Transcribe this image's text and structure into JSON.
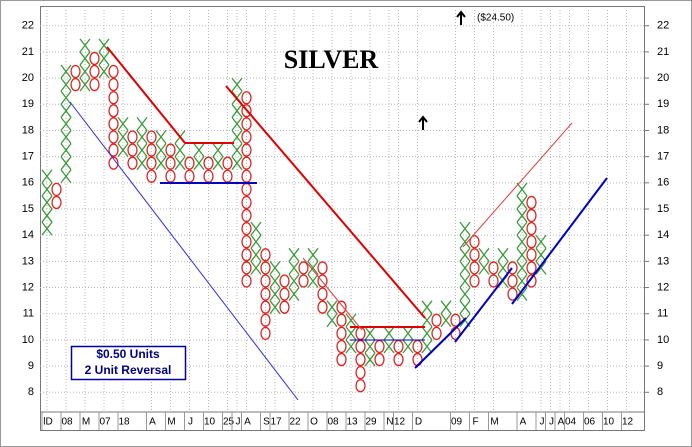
{
  "chart_data": {
    "type": "point-figure",
    "title": "SILVER",
    "annotations": [
      "($24.50)"
    ],
    "notes": [
      "$0.50 Units",
      "2 Unit Reversal"
    ],
    "box_size": 0.5,
    "x_colors": {
      "X": "#3c9a3c",
      "O": "#e02020"
    },
    "ylim": [
      7.4,
      22.6
    ],
    "yticks": [
      8,
      9,
      10,
      11,
      12,
      13,
      14,
      15,
      16,
      17,
      18,
      19,
      20,
      21,
      22
    ],
    "grid": true,
    "x_labels": [
      {
        "col": 0,
        "label": "lD"
      },
      {
        "col": 2,
        "label": "08"
      },
      {
        "col": 4,
        "label": "M"
      },
      {
        "col": 6,
        "label": "07"
      },
      {
        "col": 8,
        "label": "18"
      },
      {
        "col": 11,
        "label": "A"
      },
      {
        "col": 13,
        "label": "M"
      },
      {
        "col": 15,
        "label": "J"
      },
      {
        "col": 17,
        "label": "10"
      },
      {
        "col": 19,
        "label": "25"
      },
      {
        "col": 20,
        "label": "J"
      },
      {
        "col": 21,
        "label": "A"
      },
      {
        "col": 23,
        "label": "S"
      },
      {
        "col": 24,
        "label": "17"
      },
      {
        "col": 26,
        "label": "22"
      },
      {
        "col": 28,
        "label": "O"
      },
      {
        "col": 30,
        "label": "08"
      },
      {
        "col": 32,
        "label": "13"
      },
      {
        "col": 34,
        "label": "29"
      },
      {
        "col": 36,
        "label": "N"
      },
      {
        "col": 37,
        "label": "12"
      },
      {
        "col": 39,
        "label": "D"
      },
      {
        "col": 43,
        "label": "09"
      },
      {
        "col": 45,
        "label": "F"
      },
      {
        "col": 47,
        "label": "M"
      },
      {
        "col": 50,
        "label": "A"
      },
      {
        "col": 52,
        "label": "J"
      },
      {
        "col": 53,
        "label": "J"
      },
      {
        "col": 54,
        "label": "A"
      },
      {
        "col": 55,
        "label": "04"
      },
      {
        "col": 57,
        "label": "06"
      },
      {
        "col": 59,
        "label": "10"
      },
      {
        "col": 61,
        "label": "12"
      }
    ],
    "columns": [
      {
        "kind": "X",
        "low": 14,
        "high": 16
      },
      {
        "kind": "O",
        "low": 15,
        "high": 15.5
      },
      {
        "kind": "X",
        "low": 16,
        "high": 20
      },
      {
        "kind": "O",
        "low": 19.5,
        "high": 20
      },
      {
        "kind": "X",
        "low": 19.5,
        "high": 21
      },
      {
        "kind": "O",
        "low": 19.5,
        "high": 20.5
      },
      {
        "kind": "X",
        "low": 20,
        "high": 21
      },
      {
        "kind": "O",
        "low": 16.5,
        "high": 20
      },
      {
        "kind": "X",
        "low": 17,
        "high": 18
      },
      {
        "kind": "O",
        "low": 16.5,
        "high": 17.5
      },
      {
        "kind": "X",
        "low": 16.5,
        "high": 18
      },
      {
        "kind": "O",
        "low": 16,
        "high": 17.5
      },
      {
        "kind": "X",
        "low": 16.5,
        "high": 17.5
      },
      {
        "kind": "O",
        "low": 16,
        "high": 17
      },
      {
        "kind": "X",
        "low": 16.5,
        "high": 17.5
      },
      {
        "kind": "O",
        "low": 16,
        "high": 16.5
      },
      {
        "kind": "X",
        "low": 16.5,
        "high": 17
      },
      {
        "kind": "O",
        "low": 16,
        "high": 16.5
      },
      {
        "kind": "X",
        "low": 16.5,
        "high": 17
      },
      {
        "kind": "O",
        "low": 16,
        "high": 16.5
      },
      {
        "kind": "X",
        "low": 16.5,
        "high": 19.5
      },
      {
        "kind": "O",
        "low": 12,
        "high": 19
      },
      {
        "kind": "X",
        "low": 12.5,
        "high": 14
      },
      {
        "kind": "O",
        "low": 10,
        "high": 13
      },
      {
        "kind": "X",
        "low": 11,
        "high": 12.5
      },
      {
        "kind": "O",
        "low": 11,
        "high": 12
      },
      {
        "kind": "X",
        "low": 11.5,
        "high": 13
      },
      {
        "kind": "O",
        "low": 12,
        "high": 12.5
      },
      {
        "kind": "X",
        "low": 12,
        "high": 13
      },
      {
        "kind": "O",
        "low": 11,
        "high": 12.5
      },
      {
        "kind": "X",
        "low": 10.5,
        "high": 11
      },
      {
        "kind": "O",
        "low": 9,
        "high": 11
      },
      {
        "kind": "X",
        "low": 9.5,
        "high": 10.5
      },
      {
        "kind": "O",
        "low": 8,
        "high": 10
      },
      {
        "kind": "X",
        "low": 9,
        "high": 10
      },
      {
        "kind": "O",
        "low": 9,
        "high": 9.5
      },
      {
        "kind": "X",
        "low": 9.5,
        "high": 10
      },
      {
        "kind": "O",
        "low": 9,
        "high": 9.5
      },
      {
        "kind": "X",
        "low": 9.5,
        "high": 10
      },
      {
        "kind": "O",
        "low": 9,
        "high": 9.5
      },
      {
        "kind": "X",
        "low": 9.5,
        "high": 11
      },
      {
        "kind": "O",
        "low": 10,
        "high": 10.5
      },
      {
        "kind": "X",
        "low": 10.5,
        "high": 11
      },
      {
        "kind": "O",
        "low": 10,
        "high": 10.5
      },
      {
        "kind": "X",
        "low": 10.5,
        "high": 14
      },
      {
        "kind": "O",
        "low": 12,
        "high": 13.5
      },
      {
        "kind": "X",
        "low": 12.5,
        "high": 13
      },
      {
        "kind": "O",
        "low": 12,
        "high": 12.5
      },
      {
        "kind": "X",
        "low": 12,
        "high": 13
      },
      {
        "kind": "O",
        "low": 11.5,
        "high": 12.5
      },
      {
        "kind": "X",
        "low": 11.5,
        "high": 15.5
      },
      {
        "kind": "O",
        "low": 12,
        "high": 15
      },
      {
        "kind": "X",
        "low": 12.5,
        "high": 13.5
      }
    ]
  }
}
